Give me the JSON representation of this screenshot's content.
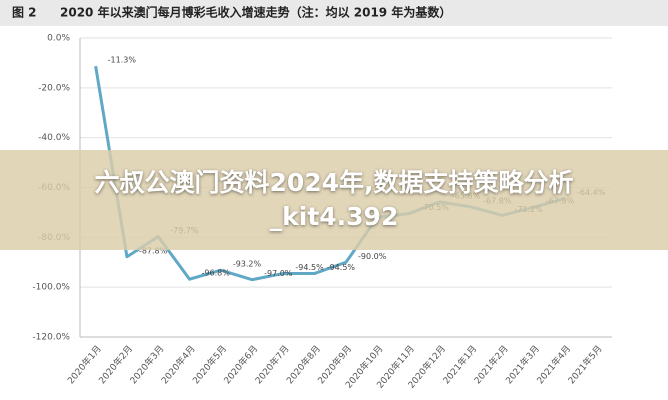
{
  "chart_data": {
    "type": "line",
    "figure_label": "图 2",
    "title": "2020 年以来澳门每月博彩毛收入增速走势（注：均以 2019 年为基数）",
    "categories": [
      "2020年1月",
      "2020年2月",
      "2020年3月",
      "2020年4月",
      "2020年5月",
      "2020年6月",
      "2020年7月",
      "2020年8月",
      "2020年9月",
      "2020年10月",
      "2020年11月",
      "2020年12月",
      "2021年1月",
      "2021年2月",
      "2021年3月",
      "2021年4月",
      "2021年5月"
    ],
    "series": [
      {
        "color": "#5fa8c6",
        "values": [
          -11.3,
          -87.8,
          -79.7,
          -96.8,
          -93.2,
          -97.0,
          -94.5,
          -94.5,
          -90.0,
          -72,
          -70.5,
          -65.8,
          -67.8,
          -71.2,
          -67.9,
          -64.4,
          null
        ],
        "value_labels": [
          "-11.3%",
          "-87.8%",
          "-79.7%",
          "-96.8%",
          "-93.2%",
          "-97.0%",
          "-94.5%",
          "-94.5%",
          "-90.0%",
          null,
          "-70.5%",
          "-65.8%",
          "-67.8%",
          "-71.2%",
          "-67.9%",
          "-64.4%",
          null
        ]
      }
    ],
    "ylim": [
      -120,
      0
    ],
    "yticks": [
      {
        "value": 0,
        "label": "0.0%"
      },
      {
        "value": -20,
        "label": "-20.0%"
      },
      {
        "value": -40,
        "label": "-40.0%"
      },
      {
        "value": -60,
        "label": "-60.0%"
      },
      {
        "value": -80,
        "label": "-80.0%"
      },
      {
        "value": -100,
        "label": "-100.0%"
      },
      {
        "value": -120,
        "label": "-120.0%"
      }
    ],
    "grid": true
  },
  "overlay_text": "六叔公澳门资料2024年,数据支持策略分析_kit4.392"
}
